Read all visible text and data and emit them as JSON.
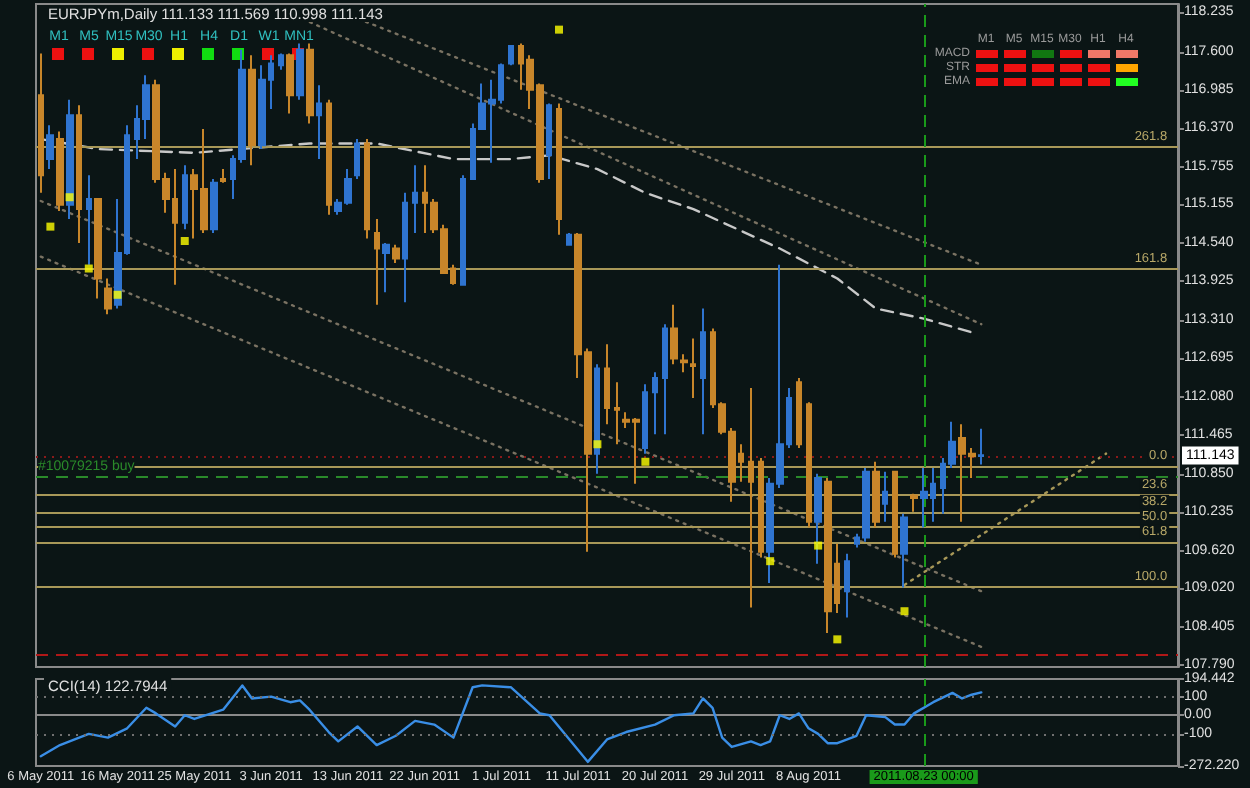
{
  "chart_data": [
    {
      "type": "candlestick",
      "title": "EURJPYm,Daily 111.133 111.569 110.998 111.143",
      "tick_labels": "y",
      "categories": [
        "6 May 2011",
        null,
        null,
        null,
        null,
        null,
        null,
        null,
        "16 May 2011",
        null,
        null,
        null,
        null,
        null,
        null,
        null,
        "25 May 2011",
        null,
        null,
        null,
        null,
        null,
        null,
        null,
        "3 Jun 2011",
        null,
        null,
        null,
        null,
        null,
        null,
        null,
        "13 Jun 2011",
        null,
        null,
        null,
        null,
        null,
        null,
        null,
        "22 Jun 2011",
        null,
        null,
        null,
        null,
        null,
        null,
        null,
        "1 Jul 2011",
        null,
        null,
        null,
        null,
        null,
        null,
        null,
        "11 Jul 2011",
        null,
        null,
        null,
        null,
        null,
        null,
        null,
        "20 Jul 2011",
        null,
        null,
        null,
        null,
        null,
        null,
        null,
        "29 Jul 2011",
        null,
        null,
        null,
        null,
        null,
        null,
        null,
        "8 Aug 2011",
        null,
        null,
        null,
        null,
        null,
        null,
        null,
        null,
        null,
        null,
        null,
        "2011.08.23 00:00",
        null,
        null,
        null,
        null,
        null,
        null,
        null,
        null,
        null,
        null,
        null,
        null,
        null,
        null,
        null,
        null,
        null,
        null,
        null,
        null,
        null,
        null,
        null,
        null,
        null,
        null
      ],
      "ohlc": [
        [
          116.9,
          117.57,
          115.34,
          115.62
        ],
        [
          115.88,
          116.42,
          115.72,
          116.26
        ],
        [
          116.2,
          116.32,
          115.05,
          115.15
        ],
        [
          115.15,
          116.83,
          114.92,
          116.58
        ],
        [
          116.58,
          116.74,
          114.54,
          115.08
        ],
        [
          115.08,
          115.62,
          114.19,
          115.24
        ],
        [
          115.24,
          115.24,
          113.65,
          113.97
        ],
        [
          113.81,
          113.97,
          113.4,
          113.49
        ],
        [
          113.55,
          115.24,
          113.49,
          114.38
        ],
        [
          114.38,
          116.42,
          114.35,
          116.26
        ],
        [
          116.2,
          116.74,
          115.88,
          116.52
        ],
        [
          116.52,
          117.22,
          116.2,
          117.06
        ],
        [
          117.06,
          117.15,
          115.5,
          115.56
        ],
        [
          115.56,
          115.66,
          115.02,
          115.24
        ],
        [
          115.24,
          115.72,
          113.87,
          114.86
        ],
        [
          114.86,
          115.78,
          114.76,
          115.62
        ],
        [
          115.62,
          115.72,
          114.61,
          115.4
        ],
        [
          115.4,
          116.36,
          114.7,
          114.76
        ],
        [
          114.76,
          115.56,
          114.7,
          115.5
        ],
        [
          115.56,
          115.72,
          115.5,
          115.53
        ],
        [
          115.56,
          115.94,
          115.24,
          115.88
        ],
        [
          115.88,
          117.63,
          115.82,
          117.31
        ],
        [
          117.31,
          117.54,
          115.78,
          116.1
        ],
        [
          116.1,
          117.38,
          116.04,
          117.15
        ],
        [
          117.15,
          117.54,
          116.68,
          117.41
        ],
        [
          117.38,
          117.57,
          117.31,
          117.54
        ],
        [
          117.54,
          117.57,
          116.61,
          116.9
        ],
        [
          116.9,
          117.73,
          116.83,
          117.63
        ],
        [
          117.63,
          117.73,
          116.45,
          116.58
        ],
        [
          116.58,
          117.06,
          115.88,
          116.77
        ],
        [
          116.77,
          116.83,
          114.99,
          115.15
        ],
        [
          115.05,
          115.24,
          114.99,
          115.18
        ],
        [
          115.18,
          115.72,
          115.15,
          115.56
        ],
        [
          115.62,
          116.2,
          115.56,
          116.13
        ],
        [
          116.13,
          116.2,
          114.61,
          114.76
        ],
        [
          114.7,
          114.92,
          113.55,
          114.45
        ],
        [
          114.38,
          114.54,
          113.75,
          114.51
        ],
        [
          114.45,
          114.51,
          114.22,
          114.29
        ],
        [
          114.29,
          115.34,
          113.59,
          115.18
        ],
        [
          115.18,
          115.78,
          114.7,
          115.34
        ],
        [
          115.34,
          115.78,
          114.7,
          115.18
        ],
        [
          115.18,
          115.24,
          114.7,
          114.76
        ],
        [
          114.76,
          114.83,
          114.06,
          114.06
        ],
        [
          114.13,
          114.19,
          113.87,
          113.9
        ],
        [
          113.87,
          115.62,
          113.87,
          115.56
        ],
        [
          115.56,
          116.45,
          115.56,
          116.36
        ],
        [
          116.36,
          117.09,
          116.36,
          116.77
        ],
        [
          116.77,
          117.15,
          115.82,
          116.83
        ],
        [
          116.83,
          117.41,
          116.77,
          117.38
        ],
        [
          117.41,
          117.69,
          117.38,
          117.69
        ],
        [
          117.69,
          117.73,
          116.99,
          117.41
        ],
        [
          117.47,
          117.54,
          116.68,
          116.99
        ],
        [
          117.06,
          117.09,
          115.5,
          115.56
        ],
        [
          115.94,
          116.77,
          115.56,
          116.74
        ],
        [
          116.68,
          116.77,
          114.67,
          114.92
        ],
        [
          114.51,
          114.7,
          114.51,
          114.67
        ],
        [
          114.67,
          114.7,
          112.38,
          112.76
        ],
        [
          112.79,
          112.85,
          109.6,
          111.17
        ],
        [
          111.17,
          112.6,
          110.85,
          112.53
        ],
        [
          112.53,
          112.92,
          111.64,
          111.9
        ],
        [
          111.9,
          112.31,
          111.32,
          111.87
        ],
        [
          111.71,
          111.83,
          111.58,
          111.68
        ],
        [
          111.71,
          111.74,
          110.69,
          111.68
        ],
        [
          111.26,
          112.28,
          111.17,
          112.15
        ],
        [
          112.15,
          112.47,
          111.48,
          112.38
        ],
        [
          112.38,
          113.24,
          111.48,
          113.17
        ],
        [
          113.17,
          113.55,
          112.6,
          112.69
        ],
        [
          112.66,
          112.76,
          112.47,
          112.63
        ],
        [
          112.6,
          113.01,
          112.06,
          112.57
        ],
        [
          112.38,
          113.49,
          111.48,
          113.11
        ],
        [
          113.11,
          113.17,
          111.9,
          111.96
        ],
        [
          111.96,
          111.99,
          111.48,
          111.52
        ],
        [
          111.52,
          111.58,
          110.4,
          110.72
        ],
        [
          111.17,
          111.32,
          110.72,
          111.04
        ],
        [
          111.04,
          112.22,
          108.71,
          110.72
        ],
        [
          111.04,
          111.1,
          109.51,
          109.6
        ],
        [
          109.6,
          110.78,
          109.1,
          110.69
        ],
        [
          110.69,
          114.19,
          110.62,
          111.32
        ],
        [
          111.32,
          112.22,
          111.26,
          112.06
        ],
        [
          112.31,
          112.38,
          111.26,
          111.32
        ],
        [
          111.96,
          111.99,
          109.99,
          110.08
        ],
        [
          110.08,
          110.85,
          109.41,
          110.78
        ],
        [
          110.72,
          110.78,
          108.3,
          108.65
        ],
        [
          109.41,
          109.73,
          108.62,
          108.78
        ],
        [
          108.97,
          109.57,
          108.55,
          109.45
        ],
        [
          109.73,
          109.89,
          109.67,
          109.83
        ],
        [
          109.83,
          110.94,
          109.76,
          110.88
        ],
        [
          110.88,
          111.04,
          109.99,
          110.08
        ],
        [
          110.37,
          110.88,
          110.08,
          110.56
        ],
        [
          110.88,
          110.88,
          109.51,
          109.57
        ],
        [
          109.57,
          110.21,
          109.03,
          110.15
        ],
        [
          110.5,
          110.53,
          110.24,
          110.46
        ],
        [
          110.46,
          110.94,
          109.99,
          110.56
        ],
        [
          110.46,
          110.94,
          110.08,
          110.69
        ],
        [
          110.62,
          111.1,
          110.21,
          111.01
        ],
        [
          111.01,
          111.68,
          110.94,
          111.36
        ],
        [
          111.42,
          111.64,
          110.08,
          111.17
        ],
        [
          111.17,
          111.26,
          110.78,
          111.13
        ],
        [
          111.133,
          111.569,
          110.998,
          111.143
        ],
        null,
        null,
        null,
        null,
        null,
        null,
        null,
        null,
        null,
        null,
        null,
        null,
        null,
        null,
        null,
        null,
        null,
        null,
        null,
        null
      ],
      "colors": [
        "#c8862a",
        "#2f74d0",
        "#c8862a",
        "#2f74d0",
        "#c8862a",
        "#2f74d0",
        "#c8862a",
        "#c8862a",
        "#2f74d0",
        "#2f74d0",
        "#2f74d0",
        "#2f74d0",
        "#c8862a",
        "#c8862a",
        "#c8862a",
        "#2f74d0",
        "#c8862a",
        "#c8862a",
        "#2f74d0",
        "#c8862a",
        "#2f74d0",
        "#2f74d0",
        "#c8862a",
        "#2f74d0",
        "#2f74d0",
        "#2f74d0",
        "#c8862a",
        "#2f74d0",
        "#c8862a",
        "#2f74d0",
        "#c8862a",
        "#2f74d0",
        "#2f74d0",
        "#2f74d0",
        "#c8862a",
        "#c8862a",
        "#2f74d0",
        "#c8862a",
        "#2f74d0",
        "#2f74d0",
        "#c8862a",
        "#c8862a",
        "#c8862a",
        "#c8862a",
        "#2f74d0",
        "#2f74d0",
        "#2f74d0",
        "#2f74d0",
        "#2f74d0",
        "#2f74d0",
        "#c8862a",
        "#c8862a",
        "#c8862a",
        "#2f74d0",
        "#c8862a",
        "#2f74d0",
        "#c8862a",
        "#c8862a",
        "#2f74d0",
        "#c8862a",
        "#c8862a",
        "#c8862a",
        "#c8862a",
        "#2f74d0",
        "#2f74d0",
        "#2f74d0",
        "#c8862a",
        "#c8862a",
        "#c8862a",
        "#2f74d0",
        "#c8862a",
        "#c8862a",
        "#c8862a",
        "#c8862a",
        "#c8862a",
        "#c8862a",
        "#2f74d0",
        "#2f74d0",
        "#2f74d0",
        "#c8862a",
        "#c8862a",
        "#2f74d0",
        "#c8862a",
        "#c8862a",
        "#2f74d0",
        "#2f74d0",
        "#2f74d0",
        "#c8862a",
        "#2f74d0",
        "#c8862a",
        "#2f74d0",
        "#c8862a",
        "#2f74d0",
        "#2f74d0",
        "#2f74d0",
        "#2f74d0",
        "#c8862a",
        "#c8862a",
        "#2f74d0",
        null,
        null,
        null,
        null,
        null,
        null,
        null,
        null,
        null,
        null,
        null,
        null,
        null,
        null,
        null,
        null,
        null,
        null,
        null,
        null
      ],
      "ylim": [
        107.76,
        118.36
      ],
      "yticks": [
        118.235,
        {
          "value": 117.6,
          "label": "117.600"
        },
        116.985,
        {
          "value": 116.37,
          "label": "116.370"
        },
        115.755,
        115.155,
        {
          "value": 114.54,
          "label": "114.540"
        },
        113.925,
        {
          "value": 113.31,
          "label": "113.310"
        },
        112.695,
        {
          "value": 112.08,
          "label": "112.080"
        },
        111.465,
        {
          "value": 110.85,
          "label": "110.850"
        },
        110.235,
        {
          "value": 109.62,
          "label": "109.620"
        },
        {
          "value": 109.02,
          "label": "109.020"
        },
        108.405,
        {
          "value": 107.79,
          "label": "107.790"
        }
      ],
      "series": [
        {
          "type": "line",
          "color": "#c8c8c8",
          "line_style": "dashed",
          "values": [
            116.2,
            null,
            null,
            null,
            null,
            null,
            116.04,
            null,
            null,
            null,
            null,
            null,
            null,
            null,
            null,
            null,
            115.98,
            null,
            null,
            null,
            null,
            null,
            null,
            null,
            null,
            null,
            null,
            null,
            116.13,
            null,
            null,
            null,
            null,
            null,
            null,
            116.13,
            null,
            null,
            null,
            null,
            null,
            null,
            null,
            115.88,
            null,
            null,
            null,
            null,
            null,
            115.88,
            null,
            null,
            null,
            115.94,
            null,
            null,
            null,
            null,
            115.72,
            null,
            null,
            null,
            null,
            115.34,
            null,
            null,
            null,
            null,
            115.08,
            null,
            null,
            null,
            null,
            null,
            null,
            null,
            null,
            114.45,
            null,
            null,
            null,
            null,
            null,
            113.97,
            null,
            null,
            null,
            113.49,
            null,
            null,
            null,
            null,
            113.33,
            null,
            null,
            null,
            null,
            113.11,
            null,
            null,
            null,
            null,
            null,
            null,
            null,
            null,
            null,
            null,
            null,
            null,
            null,
            null,
            null,
            null,
            null,
            null,
            null,
            null,
            null
          ]
        },
        {
          "type": "line",
          "color": "#7a7262",
          "line_style": "dotted",
          "values": [
            null,
            null,
            null,
            null,
            null,
            null,
            null,
            null,
            null,
            null,
            null,
            null,
            null,
            null,
            null,
            null,
            null,
            null,
            null,
            null,
            null,
            null,
            null,
            null,
            null,
            null,
            null,
            null,
            null,
            null,
            118.31,
            null,
            null,
            null,
            null,
            null,
            null,
            null,
            null,
            null,
            null,
            null,
            null,
            null,
            null,
            null,
            null,
            null,
            null,
            null,
            null,
            null,
            null,
            null,
            null,
            null,
            null,
            null,
            null,
            null,
            null,
            null,
            null,
            null,
            null,
            null,
            null,
            null,
            null,
            null,
            null,
            null,
            null,
            null,
            null,
            null,
            null,
            null,
            null,
            null,
            null,
            null,
            null,
            null,
            null,
            null,
            null,
            null,
            null,
            null,
            null,
            null,
            null,
            null,
            null,
            null,
            null,
            null,
            114.19,
            null,
            null,
            null,
            null,
            null,
            null,
            null,
            null,
            null,
            null,
            null,
            null,
            null,
            null,
            null,
            null,
            null,
            null,
            null,
            null
          ]
        },
        {
          "type": "line",
          "color": "#7a7262",
          "line_style": "dotted",
          "values": [
            null,
            null,
            null,
            null,
            null,
            null,
            null,
            null,
            null,
            null,
            null,
            null,
            null,
            null,
            null,
            null,
            null,
            null,
            null,
            null,
            null,
            null,
            null,
            null,
            null,
            118.28,
            null,
            null,
            null,
            null,
            null,
            null,
            null,
            null,
            null,
            null,
            null,
            null,
            null,
            null,
            null,
            null,
            null,
            null,
            null,
            null,
            null,
            null,
            null,
            null,
            null,
            null,
            null,
            null,
            null,
            null,
            null,
            null,
            null,
            null,
            null,
            null,
            null,
            null,
            null,
            null,
            null,
            null,
            null,
            null,
            null,
            null,
            null,
            null,
            null,
            null,
            null,
            null,
            null,
            null,
            null,
            null,
            null,
            null,
            null,
            null,
            null,
            null,
            null,
            null,
            null,
            null,
            null,
            null,
            null,
            null,
            null,
            null,
            113.24,
            null,
            null,
            null,
            null,
            null,
            null,
            null,
            null,
            null,
            null,
            null,
            null,
            null,
            null,
            null,
            null,
            null,
            null,
            null,
            null
          ]
        },
        {
          "type": "line",
          "color": "#7a7262",
          "line_style": "dotted",
          "values": [
            115.21,
            null,
            null,
            null,
            null,
            null,
            null,
            null,
            null,
            null,
            null,
            null,
            null,
            null,
            null,
            null,
            null,
            null,
            null,
            null,
            null,
            null,
            null,
            null,
            null,
            null,
            null,
            null,
            null,
            null,
            null,
            null,
            null,
            null,
            null,
            null,
            null,
            null,
            null,
            null,
            null,
            null,
            null,
            null,
            null,
            null,
            null,
            null,
            null,
            null,
            null,
            null,
            null,
            null,
            null,
            null,
            null,
            null,
            null,
            null,
            null,
            null,
            null,
            null,
            null,
            null,
            null,
            null,
            null,
            null,
            null,
            null,
            null,
            null,
            null,
            null,
            null,
            null,
            null,
            null,
            null,
            null,
            null,
            null,
            null,
            null,
            null,
            null,
            null,
            null,
            null,
            null,
            null,
            null,
            null,
            null,
            null,
            null,
            108.97,
            null,
            null,
            null,
            null,
            null,
            null,
            null,
            null,
            null,
            null,
            null,
            null,
            null,
            null,
            null,
            null,
            null,
            null,
            null,
            null
          ]
        },
        {
          "type": "line",
          "color": "#7a7262",
          "line_style": "dotted",
          "values": [
            114.32,
            null,
            null,
            null,
            null,
            null,
            null,
            null,
            null,
            null,
            null,
            null,
            null,
            null,
            null,
            null,
            null,
            null,
            null,
            null,
            null,
            null,
            null,
            null,
            null,
            null,
            null,
            null,
            null,
            null,
            null,
            null,
            null,
            null,
            null,
            null,
            null,
            null,
            null,
            null,
            null,
            null,
            null,
            null,
            null,
            null,
            null,
            null,
            null,
            null,
            null,
            null,
            null,
            null,
            null,
            null,
            null,
            null,
            null,
            null,
            null,
            null,
            null,
            null,
            null,
            null,
            null,
            null,
            null,
            null,
            null,
            null,
            null,
            null,
            null,
            null,
            null,
            null,
            null,
            null,
            null,
            null,
            null,
            null,
            null,
            null,
            null,
            null,
            null,
            null,
            null,
            null,
            null,
            null,
            null,
            null,
            null,
            null,
            108.08,
            null,
            null,
            null,
            null,
            null,
            null,
            null,
            null,
            null,
            null,
            null,
            null,
            null,
            null,
            null,
            null,
            null,
            null,
            null,
            null
          ]
        },
        {
          "type": "line",
          "color": "#a89858",
          "line_style": "dotted",
          "values": [
            null,
            null,
            null,
            null,
            null,
            null,
            null,
            null,
            null,
            null,
            null,
            null,
            null,
            null,
            null,
            null,
            null,
            null,
            null,
            null,
            null,
            null,
            null,
            null,
            null,
            null,
            null,
            null,
            null,
            null,
            null,
            null,
            null,
            null,
            null,
            null,
            null,
            null,
            null,
            null,
            null,
            null,
            null,
            null,
            null,
            null,
            null,
            null,
            null,
            null,
            null,
            null,
            null,
            null,
            null,
            null,
            null,
            null,
            null,
            null,
            null,
            null,
            null,
            null,
            null,
            null,
            null,
            null,
            null,
            null,
            null,
            null,
            null,
            null,
            null,
            null,
            null,
            null,
            null,
            null,
            null,
            null,
            null,
            null,
            null,
            null,
            null,
            null,
            null,
            null,
            109.07,
            null,
            null,
            null,
            null,
            null,
            null,
            null,
            null,
            null,
            null,
            null,
            null,
            null,
            null,
            null,
            null,
            null,
            null,
            null,
            null,
            111.17,
            null,
            null,
            null,
            null,
            null,
            null,
            null
          ]
        },
        {
          "type": "scatter",
          "color": "#ffff00",
          "marker": "square",
          "values": [
            null,
            114.8,
            null,
            115.27,
            null,
            114.13,
            null,
            null,
            113.71,
            null,
            null,
            null,
            null,
            null,
            null,
            114.57,
            null,
            null,
            null,
            null,
            null,
            null,
            null,
            null,
            null,
            null,
            null,
            null,
            null,
            null,
            null,
            null,
            null,
            null,
            null,
            null,
            null,
            null,
            null,
            null,
            null,
            null,
            null,
            null,
            null,
            null,
            null,
            null,
            null,
            null,
            null,
            null,
            null,
            null,
            117.95,
            null,
            null,
            null,
            111.32,
            null,
            null,
            null,
            null,
            111.04,
            null,
            null,
            null,
            null,
            null,
            null,
            null,
            null,
            null,
            null,
            null,
            null,
            109.45,
            null,
            null,
            null,
            null,
            109.7,
            null,
            108.2,
            null,
            null,
            null,
            null,
            null,
            null,
            108.65,
            null,
            null,
            null,
            null,
            null,
            null,
            null,
            null,
            null,
            null,
            null,
            null,
            null,
            null,
            null,
            null,
            null,
            null,
            null,
            null,
            null,
            null,
            null,
            null,
            null,
            null,
            null,
            null
          ]
        }
      ],
      "ref_lines": [
        {
          "axis": "y",
          "value": 116.07,
          "color": "#a89858"
        },
        {
          "axis": "y",
          "value": 114.13,
          "color": "#a89858"
        },
        {
          "axis": "y",
          "value": 110.97,
          "color": "#a89858"
        },
        {
          "axis": "y",
          "value": 110.51,
          "color": "#a89858"
        },
        {
          "axis": "y",
          "value": 110.24,
          "color": "#a89858"
        },
        {
          "axis": "y",
          "value": 109.99,
          "color": "#a89858"
        },
        {
          "axis": "y",
          "value": 109.76,
          "color": "#a89858"
        },
        {
          "axis": "y",
          "value": 109.03,
          "color": "#a89858"
        },
        {
          "axis": "y",
          "value": 110.81,
          "label": "#10079215 buy",
          "color": "#2a8a2a",
          "line_style": "dashed"
        },
        {
          "axis": "y",
          "value": 111.143,
          "label": "111.143",
          "color": "#8b1a1a",
          "line_style": "dotted"
        },
        {
          "axis": "y",
          "value": 107.95,
          "color": "#b01818",
          "line_style": "dashed"
        },
        {
          "axis": "x",
          "value": "2011.08.23 00:00",
          "color": "#1a9a1a",
          "line_style": "dashed"
        }
      ],
      "annotations": [
        "M1",
        "M5",
        "M15",
        "M30",
        "H1",
        "H4",
        "D1",
        "W1",
        "MN1",
        "M1",
        "M5",
        "M15",
        "M30",
        "H1",
        "H4",
        "MACD",
        "STR",
        "EMA",
        {
          "text": "261.8",
          "y": 116.07
        },
        {
          "text": "161.8",
          "y": 114.13
        },
        {
          "text": "0.0",
          "y": 110.97
        },
        {
          "text": "23.6",
          "y": 110.51
        },
        {
          "text": "38.2",
          "y": 110.24
        },
        {
          "text": "50.0",
          "y": 109.99
        },
        {
          "text": "61.8",
          "y": 109.76
        },
        {
          "text": "100.0",
          "y": 109.03
        }
      ]
    },
    {
      "type": "line",
      "title": "CCI(14) 122.7944",
      "categories": [
        "6 May 2011",
        null,
        null,
        null,
        null,
        null,
        null,
        null,
        "16 May 2011",
        null,
        null,
        null,
        null,
        null,
        null,
        null,
        "25 May 2011",
        null,
        null,
        null,
        null,
        null,
        null,
        null,
        "3 Jun 2011",
        null,
        null,
        null,
        null,
        null,
        null,
        null,
        "13 Jun 2011",
        null,
        null,
        null,
        null,
        null,
        null,
        null,
        "22 Jun 2011",
        null,
        null,
        null,
        null,
        null,
        null,
        null,
        "1 Jul 2011",
        null,
        null,
        null,
        null,
        null,
        null,
        null,
        "11 Jul 2011",
        null,
        null,
        null,
        null,
        null,
        null,
        null,
        "20 Jul 2011",
        null,
        null,
        null,
        null,
        null,
        null,
        null,
        "29 Jul 2011",
        null,
        null,
        null,
        null,
        null,
        null,
        null,
        "8 Aug 2011",
        null,
        null,
        null,
        null,
        null,
        null,
        null,
        null,
        null,
        null,
        null,
        "2011.08.23 00:00",
        null,
        null,
        null,
        null,
        null,
        null,
        null,
        null,
        null,
        null,
        null,
        null,
        null,
        null,
        null,
        null,
        null,
        null,
        null,
        null,
        null,
        null,
        null,
        null,
        null,
        null
      ],
      "values": [
        -220,
        null,
        -160,
        null,
        -120,
        -100,
        null,
        -120,
        null,
        -70,
        null,
        40,
        10,
        null,
        -60,
        0,
        -20,
        null,
        null,
        30,
        null,
        160,
        90,
        null,
        100,
        null,
        70,
        80,
        30,
        null,
        -90,
        -140,
        null,
        -60,
        null,
        -160,
        null,
        -110,
        null,
        -30,
        null,
        -50,
        null,
        -120,
        null,
        150,
        160,
        null,
        null,
        150,
        null,
        null,
        10,
        0,
        null,
        null,
        null,
        -250,
        null,
        -130,
        null,
        -90,
        null,
        null,
        -50,
        null,
        0,
        null,
        10,
        90,
        40,
        -120,
        -170,
        null,
        -140,
        -160,
        -140,
        0,
        -20,
        10,
        -70,
        -100,
        -150,
        -150,
        null,
        -110,
        0,
        null,
        -10,
        -50,
        -50,
        10,
        null,
        70,
        null,
        120,
        90,
        110,
        122.7944,
        null,
        null,
        null,
        null,
        null,
        null,
        null,
        null,
        null,
        null,
        null,
        null,
        null,
        null,
        null,
        null,
        null,
        null,
        null,
        null
      ],
      "color": "#3a8ee6",
      "ylim": [
        -272.22,
        194.442
      ],
      "yticks": [
        194.442,
        100,
        {
          "value": 0,
          "label": "0.00"
        },
        -100,
        {
          "value": -272.22,
          "label": "-272.220"
        }
      ],
      "ref_lines": [
        {
          "axis": "y",
          "value": 100,
          "color": "#707070",
          "line_style": "dotted"
        },
        {
          "axis": "y",
          "value": -100,
          "color": "#707070",
          "line_style": "dotted"
        },
        {
          "axis": "x",
          "value": "2011.08.23 00:00",
          "color": "#1a9a1a",
          "line_style": "dashed"
        }
      ]
    }
  ]
}
